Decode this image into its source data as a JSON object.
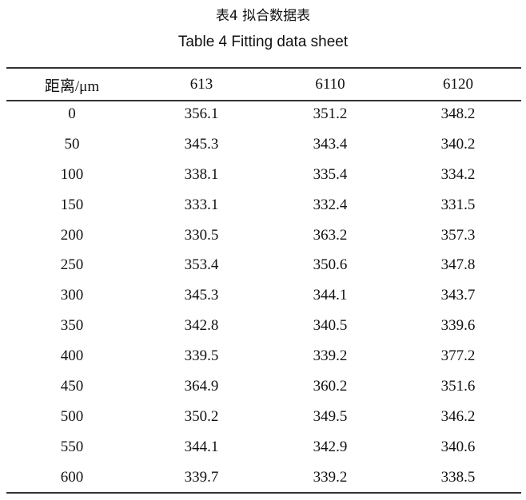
{
  "caption": {
    "title_cn": "表4  拟合数据表",
    "title_en": "Table 4  Fitting data sheet"
  },
  "table": {
    "headers": [
      "距离/μm",
      "613",
      "6110",
      "6120"
    ],
    "rows": [
      [
        "0",
        "356.1",
        "351.2",
        "348.2"
      ],
      [
        "50",
        "345.3",
        "343.4",
        "340.2"
      ],
      [
        "100",
        "338.1",
        "335.4",
        "334.2"
      ],
      [
        "150",
        "333.1",
        "332.4",
        "331.5"
      ],
      [
        "200",
        "330.5",
        "363.2",
        "357.3"
      ],
      [
        "250",
        "353.4",
        "350.6",
        "347.8"
      ],
      [
        "300",
        "345.3",
        "344.1",
        "343.7"
      ],
      [
        "350",
        "342.8",
        "340.5",
        "339.6"
      ],
      [
        "400",
        "339.5",
        "339.2",
        "377.2"
      ],
      [
        "450",
        "364.9",
        "360.2",
        "351.6"
      ],
      [
        "500",
        "350.2",
        "349.5",
        "346.2"
      ],
      [
        "550",
        "344.1",
        "342.9",
        "340.6"
      ],
      [
        "600",
        "339.7",
        "339.2",
        "338.5"
      ]
    ]
  }
}
